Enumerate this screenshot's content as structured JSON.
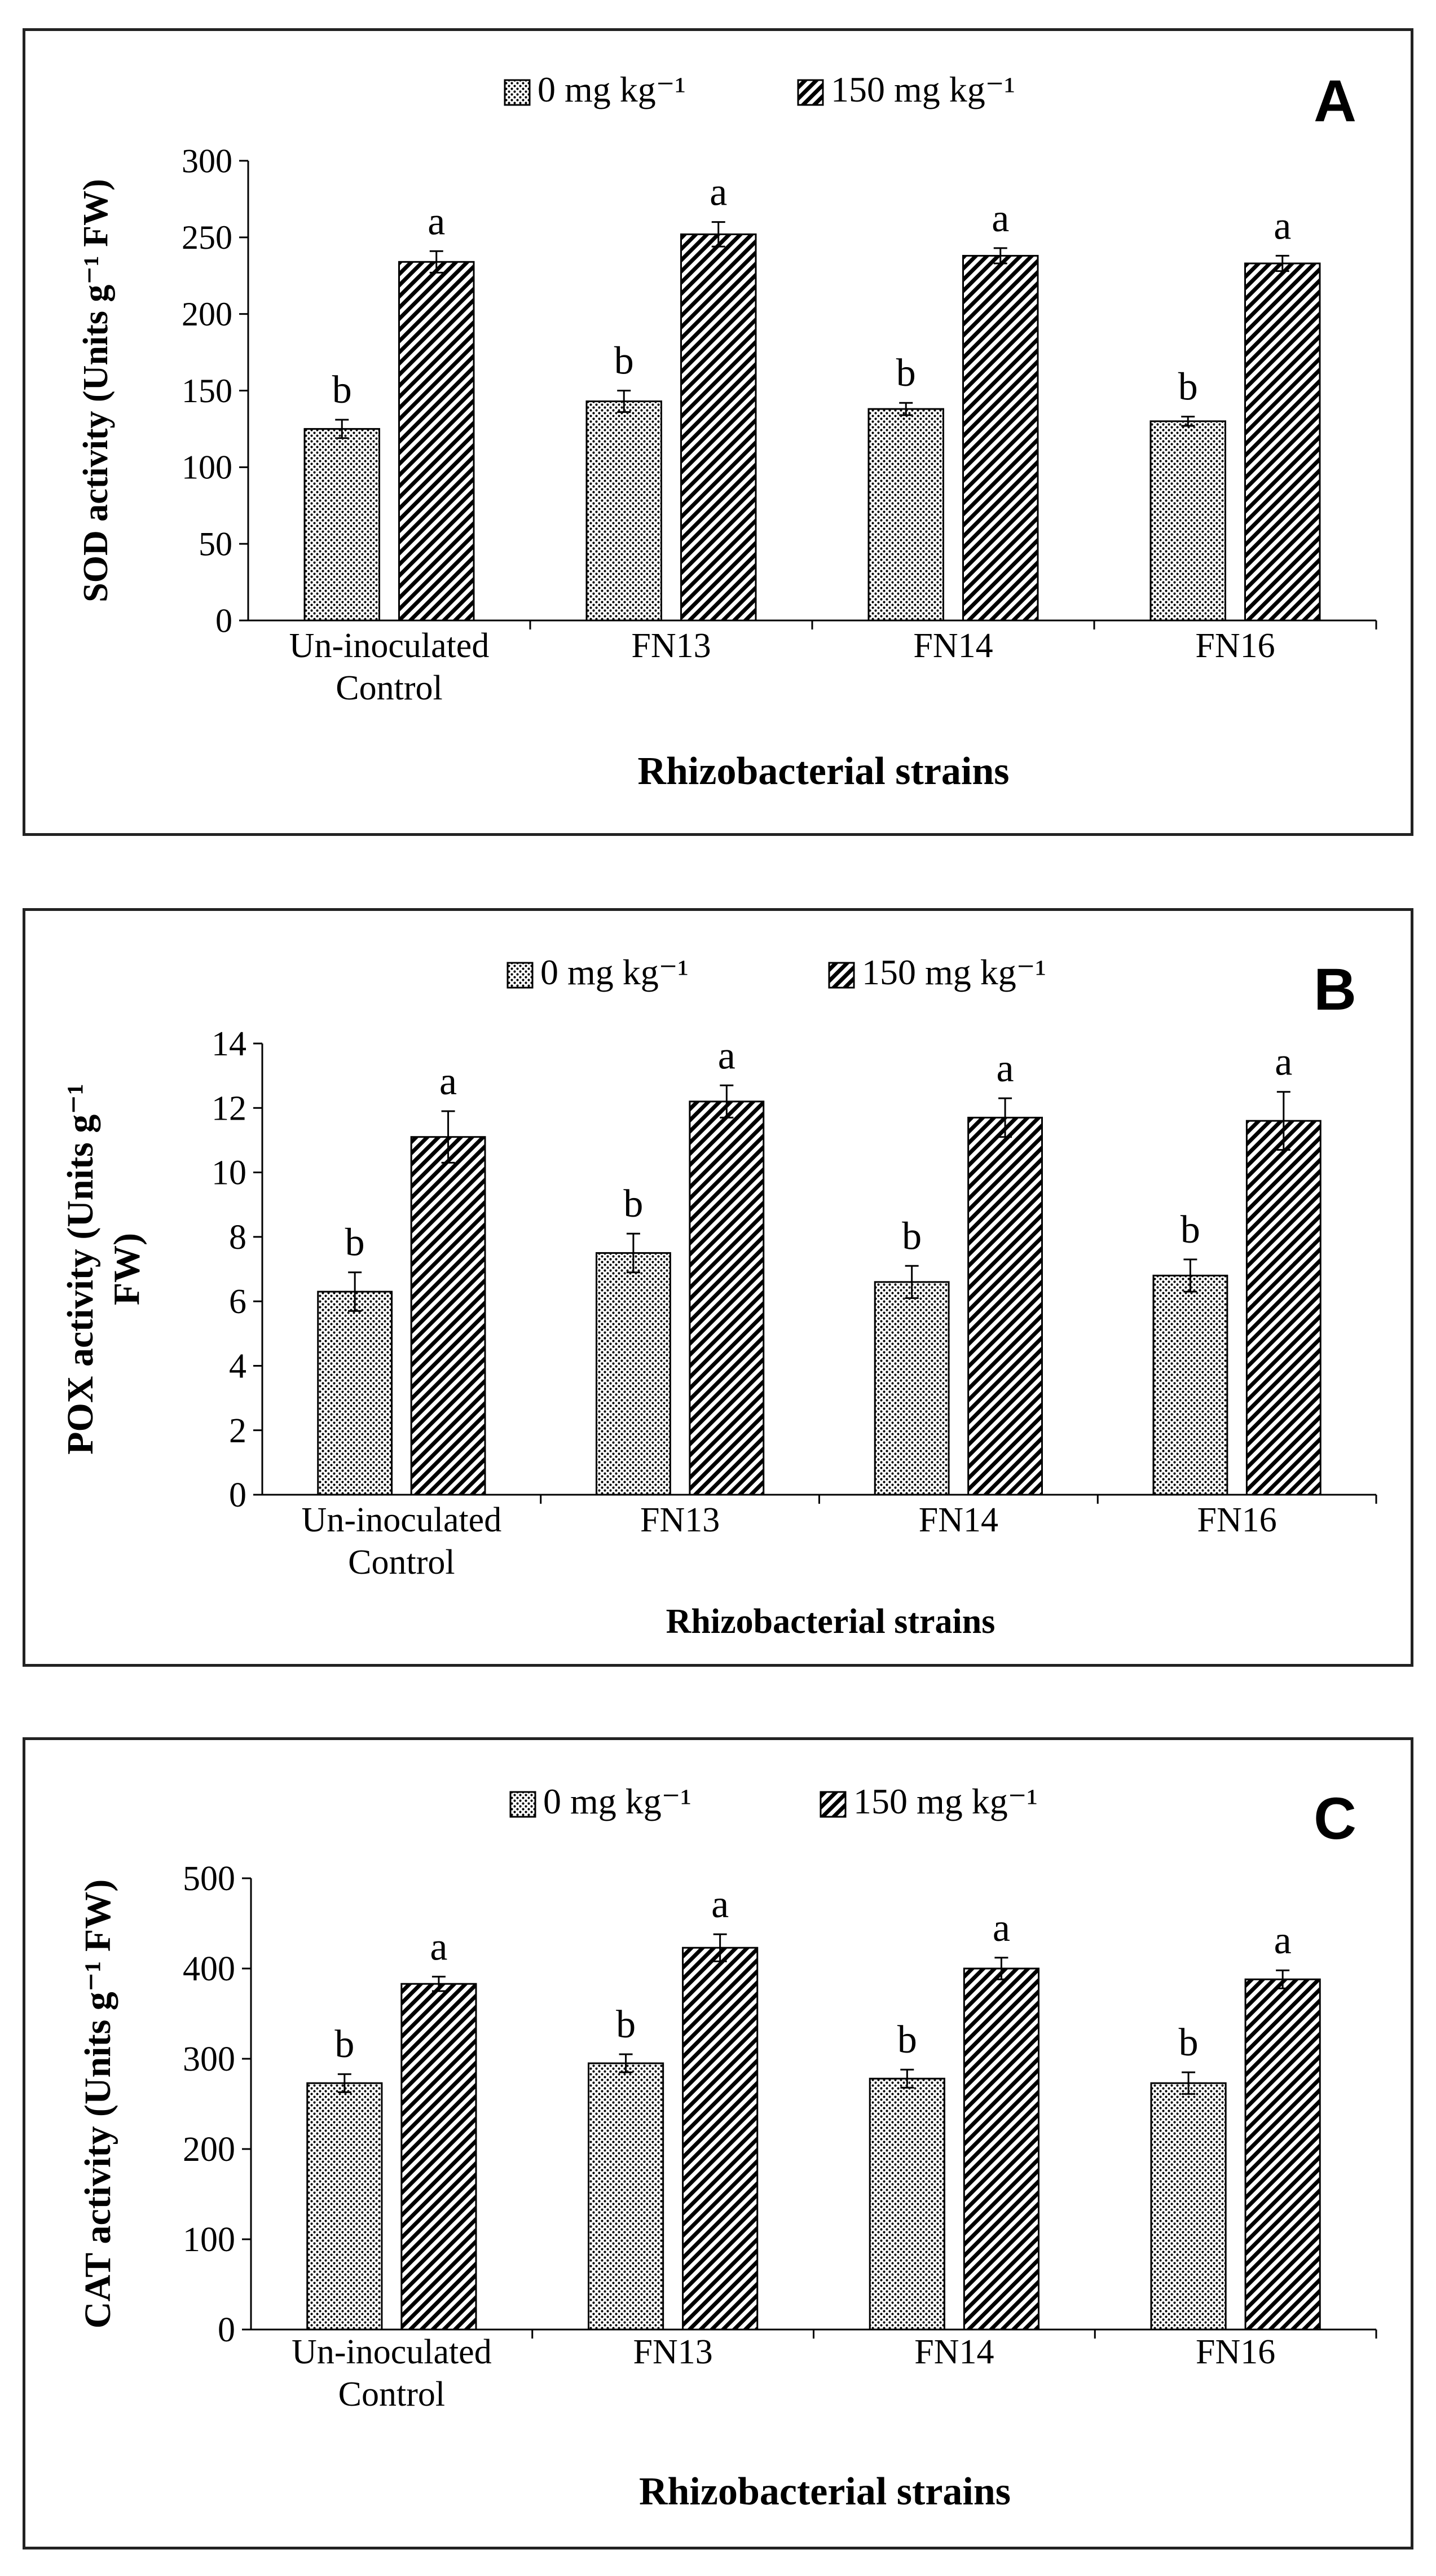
{
  "colors": {
    "axis": "#000000",
    "bar_fill": "#ffffff",
    "bar_stroke": "#000000"
  },
  "chart_data": [
    {
      "type": "bar",
      "panel_letter": "A",
      "title": "",
      "xlabel": "Rhizobacterial strains",
      "ylabel": "SOD activity (Units g⁻¹ FW)",
      "ylim": [
        0,
        300
      ],
      "yticks": [
        "0",
        "50",
        "100",
        "150",
        "200",
        "250",
        "300"
      ],
      "categories": [
        "Un-inoculated Control",
        "FN13",
        "FN14",
        "FN16"
      ],
      "category_lines": [
        [
          "Un-inoculated",
          "Control"
        ],
        [
          "FN13"
        ],
        [
          "FN14"
        ],
        [
          "FN16"
        ]
      ],
      "legend_position": "top-center",
      "series": [
        {
          "name": "0 mg kg⁻¹",
          "pattern": "dots",
          "values": [
            125,
            143,
            138,
            130
          ],
          "errors": [
            6,
            7,
            4,
            3
          ],
          "labels": [
            "b",
            "b",
            "b",
            "b"
          ]
        },
        {
          "name": "150 mg kg⁻¹",
          "pattern": "hatch",
          "values": [
            234,
            252,
            238,
            233
          ],
          "errors": [
            7,
            8,
            5,
            5
          ],
          "labels": [
            "a",
            "a",
            "a",
            "a"
          ]
        }
      ]
    },
    {
      "type": "bar",
      "panel_letter": "B",
      "title": "",
      "xlabel": "Rhizobacterial  strains",
      "ylabel": "POX activity (Units g⁻¹ FW)",
      "ylabel_lines": [
        "POX activity (Units g⁻¹",
        "FW)"
      ],
      "ylim": [
        0,
        14
      ],
      "yticks": [
        "0",
        "2",
        "4",
        "6",
        "8",
        "10",
        "12",
        "14"
      ],
      "categories": [
        "Un-inoculated Control",
        "FN13",
        "FN14",
        "FN16"
      ],
      "category_lines": [
        [
          "Un-inoculated",
          "Control"
        ],
        [
          "FN13"
        ],
        [
          "FN14"
        ],
        [
          "FN16"
        ]
      ],
      "legend_position": "top-center",
      "series": [
        {
          "name": "0 mg kg⁻¹",
          "pattern": "dots",
          "values": [
            6.3,
            7.5,
            6.6,
            6.8
          ],
          "errors": [
            0.6,
            0.6,
            0.5,
            0.5
          ],
          "labels": [
            "b",
            "b",
            "b",
            "b"
          ]
        },
        {
          "name": "150 mg kg⁻¹",
          "pattern": "hatch",
          "values": [
            11.1,
            12.2,
            11.7,
            11.6
          ],
          "errors": [
            0.8,
            0.5,
            0.6,
            0.9
          ],
          "labels": [
            "a",
            "a",
            "a",
            "a"
          ]
        }
      ]
    },
    {
      "type": "bar",
      "panel_letter": "C",
      "title": "",
      "xlabel": "Rhizobacterial strains",
      "ylabel": "CAT activity (Units g⁻¹ FW)",
      "ylim": [
        0,
        500
      ],
      "yticks": [
        "0",
        "100",
        "200",
        "300",
        "400",
        "500"
      ],
      "categories": [
        "Un-inoculated Control",
        "FN13",
        "FN14",
        "FN16"
      ],
      "category_lines": [
        [
          "Un-inoculated",
          "Control"
        ],
        [
          "FN13"
        ],
        [
          "FN14"
        ],
        [
          "FN16"
        ]
      ],
      "legend_position": "top-center",
      "series": [
        {
          "name": "0 mg kg⁻¹",
          "pattern": "dots",
          "values": [
            273,
            295,
            278,
            273
          ],
          "errors": [
            10,
            10,
            10,
            12
          ],
          "labels": [
            "b",
            "b",
            "b",
            "b"
          ]
        },
        {
          "name": "150 mg kg⁻¹",
          "pattern": "hatch",
          "values": [
            383,
            423,
            400,
            388
          ],
          "errors": [
            8,
            15,
            12,
            10
          ],
          "labels": [
            "a",
            "a",
            "a",
            "a"
          ]
        }
      ]
    }
  ]
}
